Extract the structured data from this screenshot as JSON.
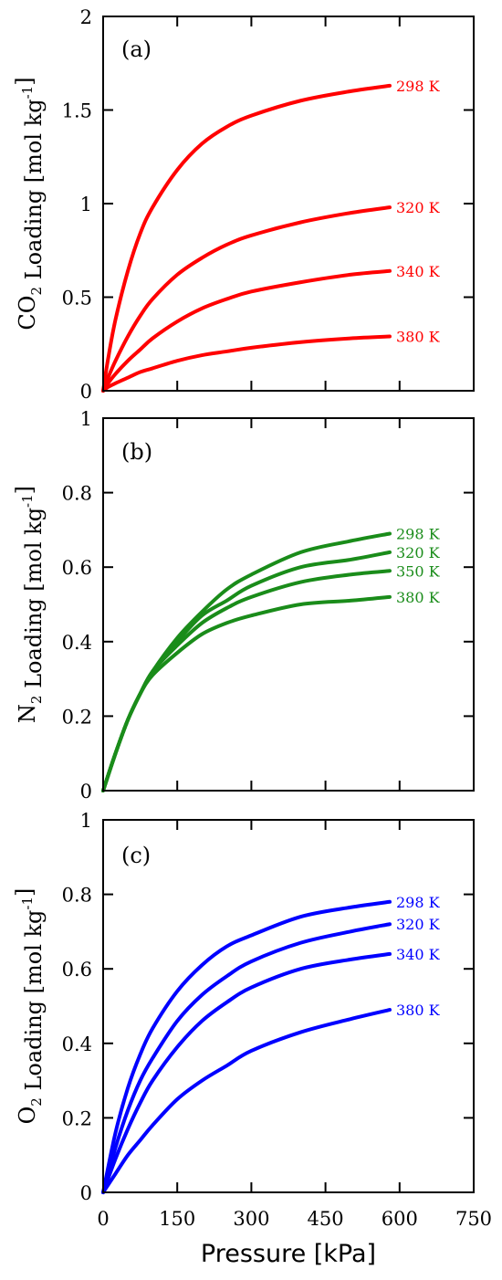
{
  "chart_data": [
    {
      "type": "line",
      "panel_tag": "(a)",
      "color": "#ff0000",
      "ylabel": {
        "species": "CO",
        "subscript": "2",
        "text": " Loading ",
        "unit": "[mol kg",
        "unit_sup": "-1",
        "unit_end": "]"
      },
      "xlim": [
        0,
        750
      ],
      "ylim": [
        0,
        2
      ],
      "x_ticks": [
        0,
        150,
        300,
        450,
        600,
        750
      ],
      "y_ticks": [
        0,
        0.5,
        1,
        1.5,
        2
      ],
      "y_tick_labels": [
        "0",
        "0.5",
        "1",
        "1.5",
        "2"
      ],
      "series": [
        {
          "name": "298 K",
          "x": [
            0,
            10,
            25,
            50,
            75,
            100,
            150,
            200,
            250,
            300,
            400,
            500,
            580
          ],
          "y": [
            0,
            0.17,
            0.38,
            0.64,
            0.84,
            0.98,
            1.18,
            1.32,
            1.41,
            1.47,
            1.55,
            1.6,
            1.63
          ]
        },
        {
          "name": "320 K",
          "x": [
            0,
            10,
            25,
            50,
            75,
            100,
            150,
            200,
            250,
            300,
            400,
            500,
            580
          ],
          "y": [
            0,
            0.07,
            0.16,
            0.29,
            0.4,
            0.49,
            0.62,
            0.71,
            0.78,
            0.83,
            0.9,
            0.95,
            0.98
          ]
        },
        {
          "name": "340 K",
          "x": [
            0,
            10,
            25,
            50,
            75,
            100,
            150,
            200,
            250,
            300,
            400,
            500,
            580
          ],
          "y": [
            0,
            0.04,
            0.09,
            0.16,
            0.22,
            0.28,
            0.37,
            0.44,
            0.49,
            0.53,
            0.58,
            0.62,
            0.64
          ]
        },
        {
          "name": "380 K",
          "x": [
            0,
            10,
            25,
            50,
            75,
            100,
            150,
            200,
            250,
            300,
            400,
            500,
            580
          ],
          "y": [
            0,
            0.02,
            0.04,
            0.07,
            0.1,
            0.12,
            0.16,
            0.19,
            0.21,
            0.23,
            0.26,
            0.28,
            0.29
          ]
        }
      ]
    },
    {
      "type": "line",
      "panel_tag": "(b)",
      "color": "#1a8c1a",
      "ylabel": {
        "species": "N",
        "subscript": "2",
        "text": " Loading ",
        "unit": "[mol kg",
        "unit_sup": "-1",
        "unit_end": "]"
      },
      "xlim": [
        0,
        750
      ],
      "ylim": [
        0,
        1
      ],
      "x_ticks": [
        0,
        150,
        300,
        450,
        600,
        750
      ],
      "y_ticks": [
        0,
        0.2,
        0.4,
        0.6,
        0.8,
        1
      ],
      "y_tick_labels": [
        "0",
        "0.2",
        "0.4",
        "0.6",
        "0.8",
        "1"
      ],
      "series": [
        {
          "name": "298 K",
          "x": [
            0,
            25,
            50,
            75,
            100,
            150,
            200,
            250,
            300,
            400,
            500,
            580
          ],
          "y": [
            0,
            0.1,
            0.19,
            0.26,
            0.32,
            0.41,
            0.48,
            0.54,
            0.58,
            0.64,
            0.67,
            0.69
          ]
        },
        {
          "name": "320 K",
          "x": [
            0,
            25,
            50,
            75,
            100,
            150,
            200,
            250,
            300,
            400,
            500,
            580
          ],
          "y": [
            0,
            0.1,
            0.19,
            0.26,
            0.32,
            0.4,
            0.47,
            0.51,
            0.55,
            0.6,
            0.62,
            0.64
          ]
        },
        {
          "name": "350 K",
          "x": [
            0,
            25,
            50,
            75,
            100,
            150,
            200,
            250,
            300,
            400,
            500,
            580
          ],
          "y": [
            0,
            0.1,
            0.19,
            0.26,
            0.32,
            0.39,
            0.45,
            0.49,
            0.52,
            0.56,
            0.58,
            0.59
          ]
        },
        {
          "name": "380 K",
          "x": [
            0,
            25,
            50,
            75,
            100,
            150,
            200,
            250,
            300,
            400,
            500,
            580
          ],
          "y": [
            0,
            0.1,
            0.19,
            0.26,
            0.31,
            0.37,
            0.42,
            0.45,
            0.47,
            0.5,
            0.51,
            0.52
          ]
        }
      ]
    },
    {
      "type": "line",
      "panel_tag": "(c)",
      "color": "#0000ff",
      "ylabel": {
        "species": "O",
        "subscript": "2",
        "text": " Loading ",
        "unit": "[mol kg",
        "unit_sup": "-1",
        "unit_end": "]"
      },
      "xlabel": "Pressure [kPa]",
      "xlim": [
        0,
        750
      ],
      "ylim": [
        0,
        1
      ],
      "x_ticks": [
        0,
        150,
        300,
        450,
        600,
        750
      ],
      "x_tick_labels": [
        "0",
        "150",
        "300",
        "450",
        "600",
        "750"
      ],
      "y_ticks": [
        0,
        0.2,
        0.4,
        0.6,
        0.8,
        1
      ],
      "y_tick_labels": [
        "0",
        "0.2",
        "0.4",
        "0.6",
        "0.8",
        "1"
      ],
      "series": [
        {
          "name": "298 K",
          "x": [
            0,
            25,
            50,
            75,
            100,
            150,
            200,
            250,
            300,
            400,
            500,
            580
          ],
          "y": [
            0,
            0.16,
            0.28,
            0.37,
            0.44,
            0.54,
            0.61,
            0.66,
            0.69,
            0.74,
            0.765,
            0.78
          ]
        },
        {
          "name": "320 K",
          "x": [
            0,
            25,
            50,
            75,
            100,
            150,
            200,
            250,
            300,
            400,
            500,
            580
          ],
          "y": [
            0,
            0.12,
            0.22,
            0.3,
            0.36,
            0.46,
            0.53,
            0.58,
            0.62,
            0.67,
            0.7,
            0.72
          ]
        },
        {
          "name": "340 K",
          "x": [
            0,
            25,
            50,
            75,
            100,
            150,
            200,
            250,
            300,
            400,
            500,
            580
          ],
          "y": [
            0,
            0.09,
            0.17,
            0.24,
            0.3,
            0.39,
            0.46,
            0.51,
            0.55,
            0.6,
            0.625,
            0.64
          ]
        },
        {
          "name": "380 K",
          "x": [
            0,
            25,
            50,
            75,
            100,
            150,
            200,
            250,
            300,
            400,
            500,
            580
          ],
          "y": [
            0,
            0.05,
            0.1,
            0.14,
            0.18,
            0.25,
            0.3,
            0.34,
            0.38,
            0.43,
            0.465,
            0.49
          ]
        }
      ]
    }
  ]
}
